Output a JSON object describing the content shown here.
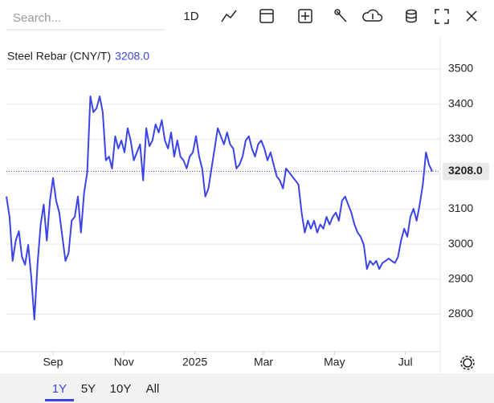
{
  "toolbar": {
    "search_placeholder": "Search...",
    "interval": "1D"
  },
  "range_buttons": [
    "1Y",
    "5Y",
    "10Y",
    "All"
  ],
  "active_range": 0,
  "chart_data": {
    "type": "line",
    "title": "Steel Rebar (CNY/T)",
    "series": [
      {
        "name": "Steel Rebar (CNY/T)",
        "color": "#3b44e8",
        "values": [
          3136,
          3078,
          2952,
          3010,
          3037,
          2964,
          2941,
          2998,
          2906,
          2785,
          2941,
          3056,
          3113,
          3010,
          3124,
          3189,
          3124,
          3090,
          3021,
          2952,
          2975,
          3067,
          3078,
          3136,
          3033,
          3147,
          3205,
          3422,
          3377,
          3388,
          3422,
          3377,
          3239,
          3250,
          3216,
          3308,
          3273,
          3296,
          3262,
          3331,
          3296,
          3239,
          3262,
          3285,
          3182,
          3331,
          3280,
          3296,
          3342,
          3319,
          3354,
          3296,
          3273,
          3319,
          3250,
          3296,
          3250,
          3239,
          3216,
          3250,
          3262,
          3308,
          3250,
          3216,
          3136,
          3159,
          3216,
          3273,
          3331,
          3308,
          3285,
          3319,
          3285,
          3273,
          3216,
          3227,
          3250,
          3296,
          3308,
          3273,
          3250,
          3285,
          3296,
          3273,
          3239,
          3262,
          3227,
          3193,
          3182,
          3159,
          3216,
          3205,
          3193,
          3182,
          3170,
          3090,
          3033,
          3067,
          3044,
          3067,
          3033,
          3056,
          3044,
          3078,
          3056,
          3078,
          3090,
          3067,
          3124,
          3136,
          3113,
          3090,
          3056,
          3033,
          3021,
          2998,
          2929,
          2952,
          2941,
          2952,
          2929,
          2946,
          2952,
          2959,
          2952,
          2946,
          2963,
          3010,
          3044,
          3021,
          3078,
          3101,
          3067,
          3113,
          3170,
          3262,
          3227,
          3208
        ]
      }
    ],
    "last": {
      "value": 3208,
      "label": "3208.0"
    },
    "xlim": [
      0,
      366
    ],
    "xticks": [
      {
        "value": 40,
        "label": "Sep"
      },
      {
        "value": 101,
        "label": "Nov"
      },
      {
        "value": 162,
        "label": "2025"
      },
      {
        "value": 221,
        "label": "Mar"
      },
      {
        "value": 282,
        "label": "May"
      },
      {
        "value": 343,
        "label": "Jul"
      }
    ],
    "ylim": [
      2693,
      3594
    ],
    "yticks": [
      2800,
      2900,
      3000,
      3100,
      3200,
      3300,
      3400,
      3500
    ],
    "grid": true
  }
}
